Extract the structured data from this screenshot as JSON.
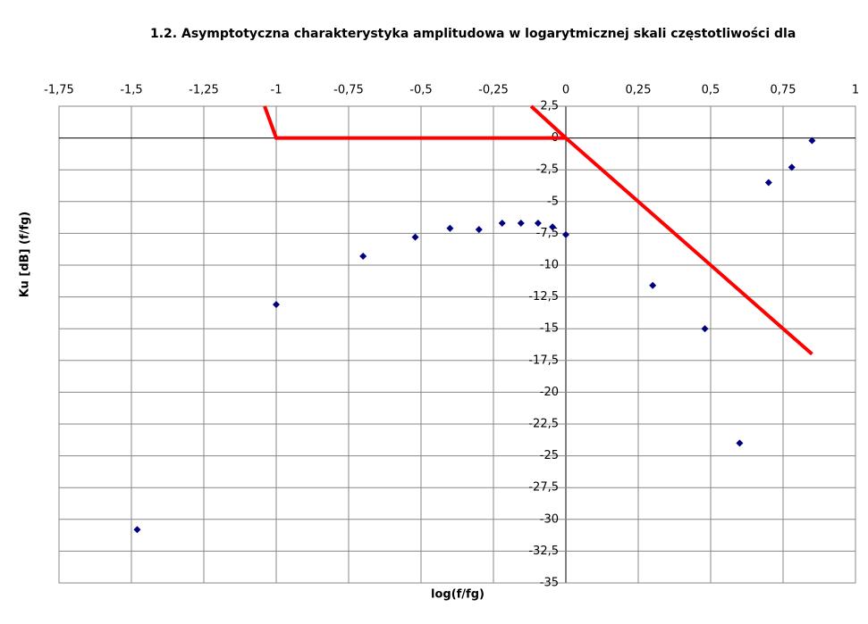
{
  "chart_data": {
    "type": "scatter",
    "title": "1.2. Asymptotyczna charakterystyka amplitudowa w logarytmicznej skali częstotliwości dla",
    "x_label": "log(f/fg)",
    "y_label": "Ku [dB] (f/fg)",
    "xlim": [
      -1.75,
      1
    ],
    "ylim": [
      -35,
      2.5
    ],
    "xticks": [
      {
        "value": -1.75,
        "label": "-1,75"
      },
      {
        "value": -1.5,
        "label": "-1,5"
      },
      {
        "value": -1.25,
        "label": "-1,25"
      },
      -1,
      {
        "value": -0.75,
        "label": "-0,75"
      },
      {
        "value": -0.5,
        "label": "-0,5"
      },
      {
        "value": -0.25,
        "label": "-0,25"
      },
      0,
      {
        "value": 0.25,
        "label": "0,25"
      },
      {
        "value": 0.5,
        "label": "0,5"
      },
      {
        "value": 0.75,
        "label": "0,75"
      },
      1
    ],
    "yticks": [
      {
        "value": 2.5,
        "label": "2,5"
      },
      0,
      {
        "value": -2.5,
        "label": "-2,5"
      },
      -5,
      {
        "value": -7.5,
        "label": "-7,5"
      },
      -10,
      {
        "value": -12.5,
        "label": "-12,5"
      },
      -15,
      {
        "value": -17.5,
        "label": "-17,5"
      },
      -20,
      {
        "value": -22.5,
        "label": "-22,5"
      },
      -25,
      {
        "value": -27.5,
        "label": "-27,5"
      },
      -30,
      {
        "value": -32.5,
        "label": "-32,5"
      },
      -35
    ],
    "grid": true,
    "series": [
      {
        "style": "markers",
        "color": "#000080",
        "x": [
          -1.48,
          -1.0,
          -0.7,
          -0.52,
          -0.4,
          -0.3,
          -0.22,
          -0.155,
          -0.096,
          -0.046,
          0,
          0.3,
          0.48,
          0.6,
          0.7,
          0.78,
          0.85
        ],
        "values": [
          -30.8,
          -13.1,
          -9.3,
          -7.8,
          -7.1,
          -7.2,
          -6.7,
          -6.7,
          -6.7,
          -7.0,
          -7.6,
          -11.6,
          -15.0,
          -24.0,
          -3.5,
          -2.3,
          -0.2
        ]
      },
      {
        "style": "line",
        "color": "#ff0000",
        "x": [
          -1.04,
          -1,
          0
        ],
        "values": [
          2.5,
          0,
          0
        ]
      },
      {
        "style": "line",
        "color": "#ff0000",
        "x": [
          -0.12,
          0,
          0.85
        ],
        "values": [
          2.5,
          0,
          -17
        ]
      }
    ]
  }
}
